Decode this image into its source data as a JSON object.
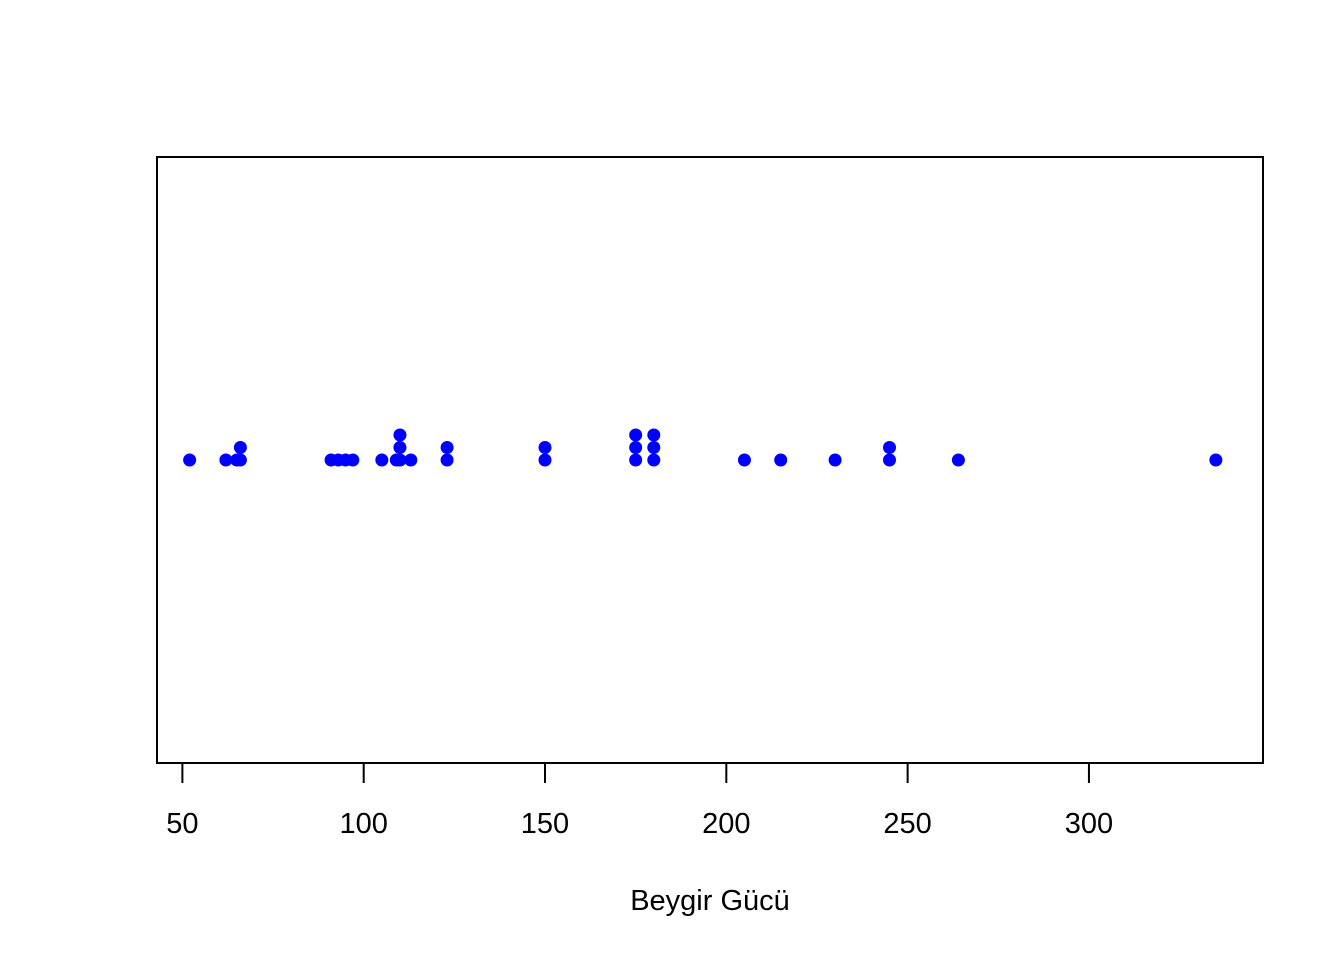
{
  "chart_data": {
    "type": "scatter",
    "subtype": "stripchart-stacked",
    "xlabel": "Beygir Gücü",
    "ylabel": "",
    "title": "",
    "xlim": [
      43,
      348
    ],
    "x_ticks": [
      50,
      100,
      150,
      200,
      250,
      300
    ],
    "x_tick_labels": [
      "50",
      "100",
      "150",
      "200",
      "250",
      "300"
    ],
    "grid": false,
    "point_color": "#0000ff",
    "values": [
      52,
      62,
      65,
      66,
      66,
      91,
      93,
      95,
      97,
      105,
      109,
      110,
      110,
      110,
      113,
      123,
      123,
      150,
      150,
      175,
      175,
      175,
      180,
      180,
      180,
      205,
      215,
      230,
      245,
      245,
      264,
      335
    ]
  }
}
